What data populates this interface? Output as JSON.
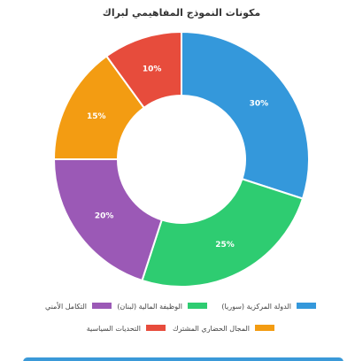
{
  "chart_data": {
    "type": "pie",
    "title": "مكونات النموذج المفاهيمي لبراك",
    "donut": true,
    "slices": [
      {
        "label": "الدولة المركزية (سوريا)",
        "value": 30,
        "display": "30%",
        "color": "#3498db"
      },
      {
        "label": "الوظيفة المالية (لبنان)",
        "value": 25,
        "display": "25%",
        "color": "#2ecc71"
      },
      {
        "label": "التكامل الأمني",
        "value": 20,
        "display": "20%",
        "color": "#9b59b6"
      },
      {
        "label": "المجال الحضاري المشترك",
        "value": 15,
        "display": "15%",
        "color": "#f39c12"
      },
      {
        "label": "التحديات السياسية",
        "value": 10,
        "display": "10%",
        "color": "#e74c3c"
      }
    ],
    "legend_position": "bottom"
  }
}
